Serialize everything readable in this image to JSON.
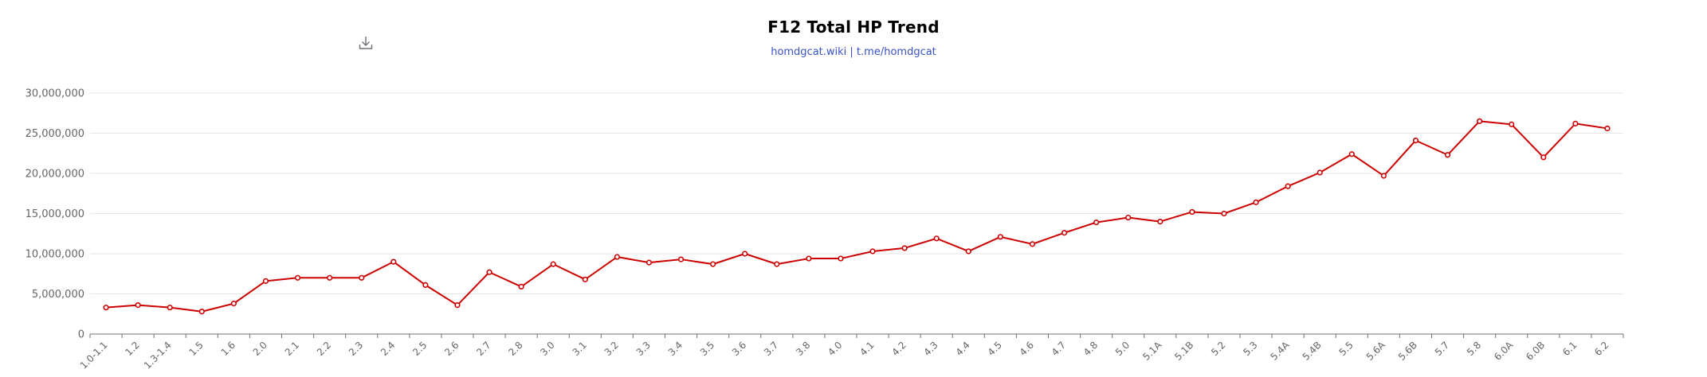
{
  "header": {
    "title": "F12 Total HP Trend",
    "subtitle": "homdgcat.wiki | t.me/homdgcat"
  },
  "toolbar": {
    "download_icon": "download-icon"
  },
  "colors": {
    "line": "#cc0000",
    "grid": "#e6e6e6",
    "axis": "#6e7079",
    "subtitle": "#3a52c4"
  },
  "chart_data": {
    "type": "line",
    "title": "F12 Total HP Trend",
    "subtitle": "homdgcat.wiki | t.me/homdgcat",
    "xlabel": "",
    "ylabel": "",
    "ylim": [
      0,
      30000000
    ],
    "yticks": [
      0,
      5000000,
      10000000,
      15000000,
      20000000,
      25000000,
      30000000
    ],
    "ytick_labels": [
      "0",
      "5,000,000",
      "10,000,000",
      "15,000,000",
      "20,000,000",
      "25,000,000",
      "30,000,000"
    ],
    "grid": true,
    "legend": "none",
    "categories": [
      "1.0-1.1",
      "1.2",
      "1.3-1.4",
      "1.5",
      "1.6",
      "2.0",
      "2.1",
      "2.2",
      "2.3",
      "2.4",
      "2.5",
      "2.6",
      "2.7",
      "2.8",
      "3.0",
      "3.1",
      "3.2",
      "3.3",
      "3.4",
      "3.5",
      "3.6",
      "3.7",
      "3.8",
      "4.0",
      "4.1",
      "4.2",
      "4.3",
      "4.4",
      "4.5",
      "4.6",
      "4.7",
      "4.8",
      "5.0",
      "5.1A",
      "5.1B",
      "5.2",
      "5.3",
      "5.4A",
      "5.4B",
      "5.5",
      "5.6A",
      "5.6B",
      "5.7",
      "5.8",
      "6.0A",
      "6.0B",
      "6.1",
      "6.2"
    ],
    "series": [
      {
        "values": [
          3300000,
          3600000,
          3300000,
          2800000,
          3800000,
          6600000,
          7000000,
          7000000,
          7000000,
          9000000,
          6100000,
          3600000,
          7700000,
          5900000,
          8700000,
          6800000,
          9600000,
          8900000,
          9300000,
          8700000,
          10000000,
          8700000,
          9400000,
          9400000,
          10300000,
          10700000,
          11900000,
          10300000,
          12100000,
          11200000,
          12600000,
          13900000,
          14500000,
          14000000,
          15200000,
          15000000,
          16400000,
          18400000,
          20100000,
          22400000,
          19700000,
          24100000,
          22300000,
          26500000,
          26100000,
          22000000,
          26200000,
          25600000
        ]
      }
    ]
  }
}
